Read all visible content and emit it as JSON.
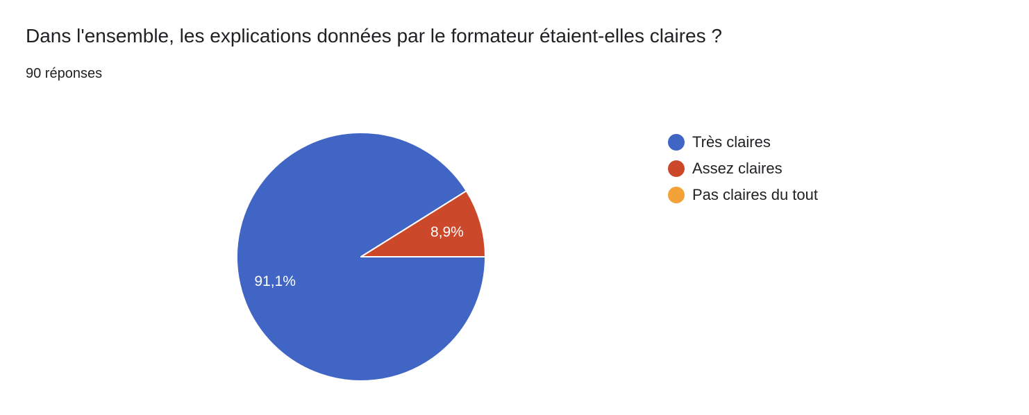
{
  "header": {
    "question": "Dans l'ensemble, les explications données par le formateur étaient-elles claires ?",
    "responses": "90 réponses"
  },
  "chart_data": {
    "type": "pie",
    "categories": [
      "Très claires",
      "Assez claires",
      "Pas claires du tout"
    ],
    "values": [
      91.1,
      8.9,
      0
    ],
    "data_labels": [
      "91,1%",
      "8,9%",
      ""
    ],
    "colors": [
      "#4065c4",
      "#cc482b",
      "#f2a237"
    ],
    "legend_position": "right"
  }
}
